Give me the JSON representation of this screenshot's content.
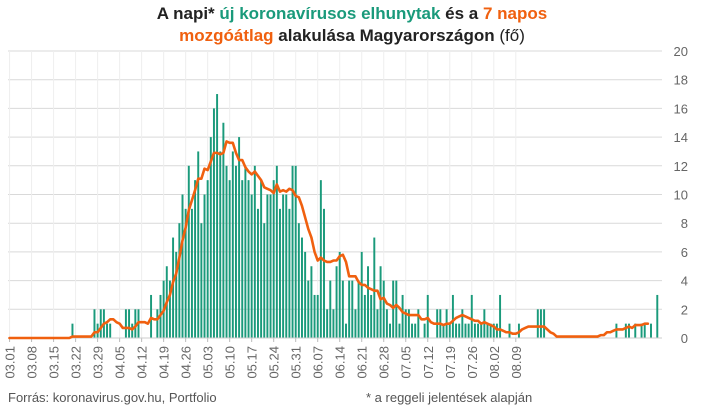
{
  "title": {
    "line1": [
      {
        "text": "A napi* ",
        "color": "#222222",
        "italic": false
      },
      {
        "text": "új koronavírusos elhunytak",
        "color": "#1a9a7b",
        "italic": false
      },
      {
        "text": " és a ",
        "color": "#222222",
        "italic": false
      },
      {
        "text": "7 napos",
        "color": "#f0600f",
        "italic": false
      }
    ],
    "line2": [
      {
        "text": "mozgóátlag",
        "color": "#f0600f",
        "italic": false
      },
      {
        "text": " alakulása Magyarországon ",
        "color": "#222222",
        "italic": false
      },
      {
        "text": "(fő)",
        "color": "#222222",
        "italic": false,
        "thin": true
      }
    ]
  },
  "footer": {
    "source": "Forrás: koronavirus.gov.hu, Portfolio",
    "note": "* a reggeli jelentések alapján"
  },
  "colors": {
    "bar": "#1a9a7b",
    "line": "#f0600f",
    "grid": "#d9d9d9",
    "tick": "#666666"
  },
  "chart_data": {
    "type": "bar",
    "title": "",
    "xlabel": "",
    "ylabel": "",
    "ylim": [
      0,
      20
    ],
    "yticks": [
      0,
      2,
      4,
      6,
      8,
      10,
      12,
      14,
      16,
      18,
      20
    ],
    "x_start": "03.01",
    "x_end": "08.11",
    "xtick_labels": [
      "03.01",
      "03.08",
      "03.15",
      "03.22",
      "03.29",
      "04.05",
      "04.12",
      "04.19",
      "04.26",
      "05.03",
      "05.10",
      "05.17",
      "05.24",
      "05.31",
      "06.07",
      "06.14",
      "06.21",
      "06.28",
      "07.05",
      "07.12",
      "07.19",
      "07.26",
      "08.02",
      "08.09"
    ],
    "grid": true,
    "legend": "none",
    "series": [
      {
        "name": "új koronavírusos elhunytak",
        "type": "bar",
        "values": [
          0,
          0,
          0,
          0,
          0,
          0,
          0,
          0,
          0,
          0,
          0,
          0,
          0,
          0,
          0,
          0,
          0,
          0,
          0,
          0,
          1,
          0,
          0,
          0,
          0,
          0,
          0,
          2,
          1,
          2,
          2,
          1,
          1,
          0,
          0,
          0,
          0,
          2,
          2,
          1,
          2,
          2,
          0,
          0,
          0,
          3,
          0,
          2,
          3,
          4,
          5,
          4,
          7,
          6,
          8,
          10,
          9,
          12,
          9,
          11,
          13,
          8,
          10,
          11,
          14,
          16,
          17,
          13,
          15,
          12,
          11,
          13,
          12,
          14,
          11,
          12,
          11,
          10,
          12,
          9,
          11,
          8,
          10,
          10,
          11,
          12,
          9,
          10,
          10,
          9,
          12,
          12,
          8,
          7,
          6,
          4,
          5,
          3,
          3,
          11,
          9,
          2,
          4,
          2,
          5,
          6,
          4,
          1,
          4,
          4,
          2,
          4,
          6,
          3,
          5,
          3,
          7,
          2,
          5,
          4,
          2,
          1,
          4,
          4,
          1,
          3,
          2,
          2,
          1,
          1,
          2,
          0,
          1,
          3,
          0,
          0,
          2,
          2,
          1,
          2,
          1,
          3,
          1,
          1,
          2,
          1,
          1,
          3,
          1,
          1,
          1,
          2,
          1,
          1,
          1,
          1,
          3,
          0,
          0,
          1,
          0,
          0,
          1,
          0,
          0,
          0,
          0,
          0,
          2,
          2,
          2,
          0,
          0,
          0,
          0,
          0,
          0,
          0,
          0,
          0,
          0,
          0,
          0,
          0,
          0,
          0,
          0,
          0,
          0,
          0,
          0,
          0,
          0,
          1,
          0,
          0,
          1,
          1,
          0,
          1,
          0,
          1,
          1,
          0,
          1,
          0,
          3,
          0
        ]
      },
      {
        "name": "7 napos mozgóátlag",
        "type": "line",
        "values": [
          0,
          0,
          0,
          0,
          0,
          0,
          0,
          0,
          0,
          0,
          0,
          0,
          0,
          0,
          0,
          0,
          0,
          0,
          0,
          0,
          0.1,
          0.1,
          0.1,
          0.1,
          0.1,
          0.1,
          0.1,
          0.4,
          0.4,
          0.7,
          1.0,
          1.1,
          1.3,
          1.3,
          1.1,
          1.0,
          0.7,
          0.7,
          0.7,
          0.6,
          0.8,
          1.1,
          1.1,
          1.1,
          1.0,
          1.4,
          1.3,
          1.3,
          1.6,
          1.9,
          2.5,
          3.0,
          3.9,
          4.5,
          5.6,
          6.8,
          7.7,
          8.9,
          9.6,
          10.3,
          11.1,
          11.1,
          11.8,
          11.7,
          12.3,
          12.9,
          12.9,
          12.8,
          12.9,
          13.7,
          13.6,
          13.6,
          12.9,
          12.4,
          12.4,
          11.9,
          11.6,
          11.4,
          11.6,
          11.3,
          11.0,
          10.5,
          10.4,
          10.3,
          10.1,
          10.7,
          10.2,
          10.3,
          10.2,
          10.4,
          10.3,
          9.9,
          9.8,
          9.2,
          8.4,
          7.6,
          7.0,
          6.0,
          5.4,
          5.6,
          5.4,
          5.3,
          5.3,
          5.4,
          5.4,
          5.7,
          5.8,
          5.3,
          4.3,
          4.3,
          4.3,
          3.9,
          3.7,
          3.7,
          3.5,
          3.4,
          3.3,
          3.3,
          2.7,
          2.8,
          2.4,
          2.3,
          2.1,
          2.3,
          2.1,
          1.8,
          1.7,
          1.6,
          1.6,
          1.6,
          1.6,
          1.3,
          1.3,
          1.4,
          1.1,
          1.0,
          1.0,
          1.0,
          0.9,
          1.0,
          1.0,
          1.2,
          1.4,
          1.5,
          1.6,
          1.5,
          1.4,
          1.3,
          1.2,
          1.2,
          1.0,
          1.1,
          1.0,
          0.9,
          0.8,
          0.6,
          0.6,
          0.5,
          0.4,
          0.4,
          0.3,
          0.3,
          0.4,
          0.6,
          0.7,
          0.8,
          0.8,
          0.8,
          0.8,
          0.8,
          0.8,
          0.6,
          0.4,
          0.3,
          0.1,
          0.1,
          0.1,
          0.1,
          0.1,
          0.1,
          0.1,
          0.1,
          0.1,
          0.1,
          0.1,
          0.1,
          0.1,
          0.1,
          0.2,
          0.2,
          0.4,
          0.4,
          0.5,
          0.6,
          0.6,
          0.6,
          0.7,
          0.8,
          0.7,
          0.9,
          0.9,
          0.9,
          1.0,
          1.0
        ]
      }
    ]
  }
}
